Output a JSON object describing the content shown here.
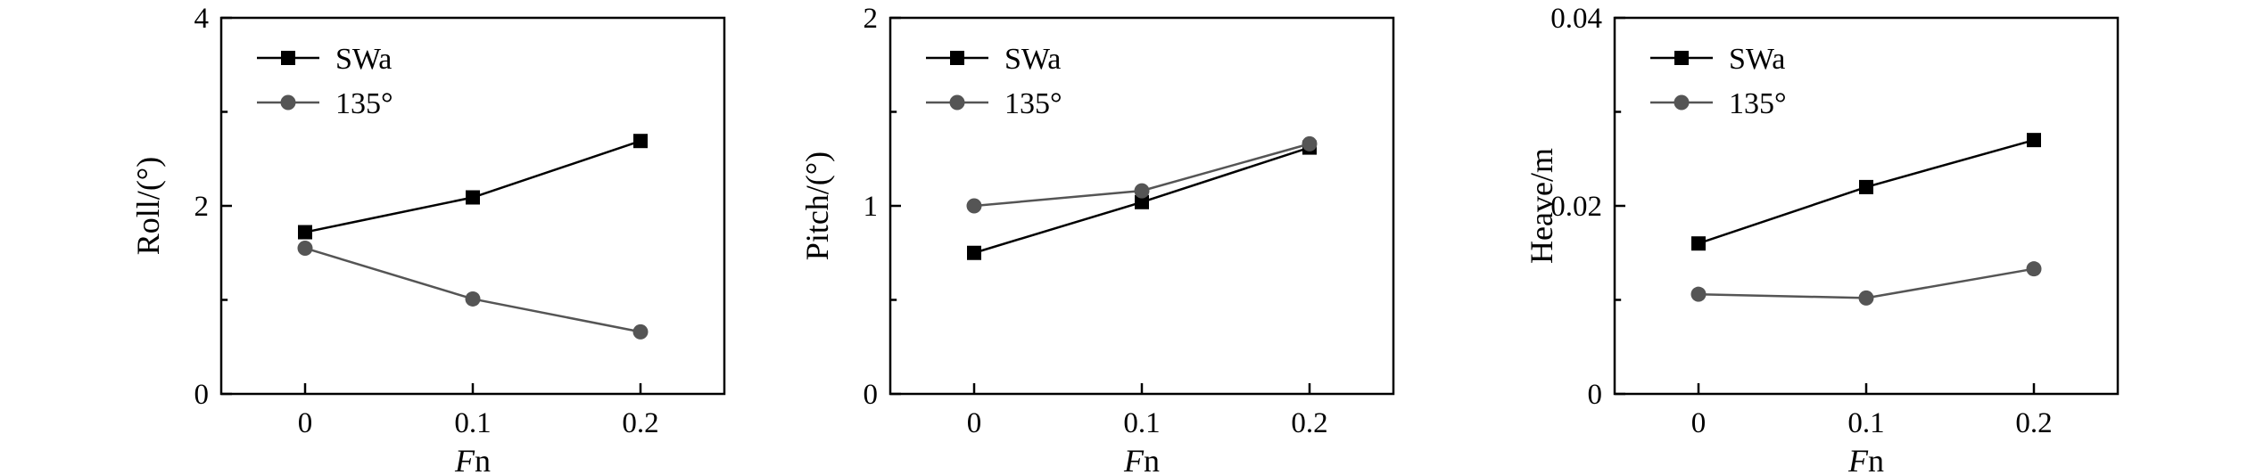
{
  "colors": {
    "swa": "#000000",
    "deg135": "#555555"
  },
  "chart_data": [
    {
      "type": "line",
      "title": "",
      "xlabel": "Fn",
      "ylabel": "Roll/(°)",
      "categories": [
        0,
        0.1,
        0.2
      ],
      "x_tick_labels": [
        "0",
        "0.1",
        "0.2"
      ],
      "xlim": [
        -0.05,
        0.25
      ],
      "ylim": [
        0,
        4
      ],
      "y_ticks": [
        0,
        2,
        4
      ],
      "y_tick_labels": [
        "0",
        "2",
        "4"
      ],
      "y_minor_ticks": [
        1,
        3
      ],
      "legend_position": "top-left",
      "series": [
        {
          "name": "SWa",
          "marker": "square",
          "values": [
            1.72,
            2.09,
            2.69
          ]
        },
        {
          "name": "135°",
          "marker": "circle",
          "values": [
            1.55,
            1.01,
            0.66
          ]
        }
      ]
    },
    {
      "type": "line",
      "title": "",
      "xlabel": "Fn",
      "ylabel": "Pitch/(°)",
      "categories": [
        0,
        0.1,
        0.2
      ],
      "x_tick_labels": [
        "0",
        "0.1",
        "0.2"
      ],
      "xlim": [
        -0.05,
        0.25
      ],
      "ylim": [
        0,
        2
      ],
      "y_ticks": [
        0,
        1,
        2
      ],
      "y_tick_labels": [
        "0",
        "1",
        "2"
      ],
      "y_minor_ticks": [
        0.5,
        1.5
      ],
      "legend_position": "top-left",
      "series": [
        {
          "name": "SWa",
          "marker": "square",
          "values": [
            0.75,
            1.02,
            1.31
          ]
        },
        {
          "name": "135°",
          "marker": "circle",
          "values": [
            1.0,
            1.08,
            1.33
          ]
        }
      ]
    },
    {
      "type": "line",
      "title": "",
      "xlabel": "Fn",
      "ylabel": "Heave/m",
      "categories": [
        0,
        0.1,
        0.2
      ],
      "x_tick_labels": [
        "0",
        "0.1",
        "0.2"
      ],
      "xlim": [
        -0.05,
        0.25
      ],
      "ylim": [
        0,
        0.04
      ],
      "y_ticks": [
        0,
        0.02,
        0.04
      ],
      "y_tick_labels": [
        "0",
        "0.02",
        "0.04"
      ],
      "y_minor_ticks": [
        0.01,
        0.03
      ],
      "legend_position": "top-left",
      "series": [
        {
          "name": "SWa",
          "marker": "square",
          "values": [
            0.016,
            0.022,
            0.027
          ]
        },
        {
          "name": "135°",
          "marker": "circle",
          "values": [
            0.0106,
            0.0102,
            0.0133
          ]
        }
      ]
    }
  ]
}
